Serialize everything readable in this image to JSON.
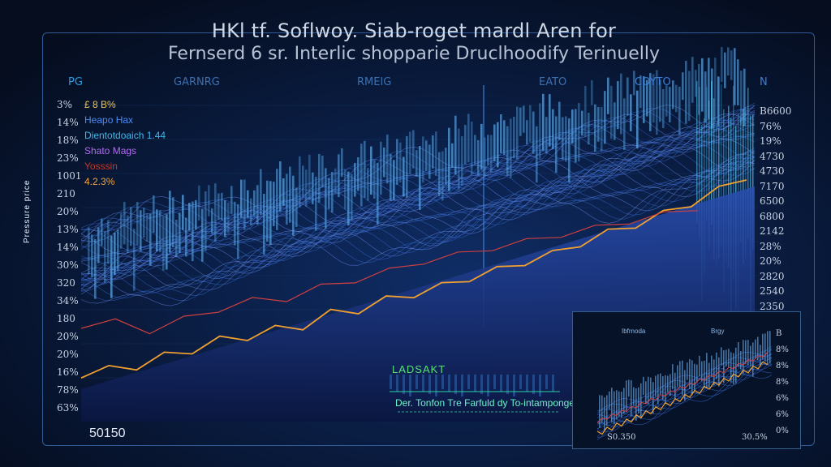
{
  "title": "HKl tf. Soflwoy. Siab-roget mardl Aren for",
  "subtitle": "Fernserd 6 sr. Interlic shopparie Druclhoodify Terinuelly",
  "column_headers": [
    {
      "text": "PG",
      "color": "#2b9be0"
    },
    {
      "text": "GARNRG",
      "color": "#3d6fb0"
    },
    {
      "text": "RMEIG",
      "color": "#3d6fb0"
    },
    {
      "text": "EATO",
      "color": "#3d6fb0"
    },
    {
      "text": "COYTO",
      "color": "#3a7ed6"
    },
    {
      "text": "N",
      "color": "#3a7ed6"
    }
  ],
  "y_ticks_left": [
    "3%",
    "14%",
    "18%",
    "23%",
    "1001",
    "210",
    "20%",
    "13%",
    "14%",
    "30%",
    "320",
    "34%",
    "180",
    "20%",
    "20%",
    "16%",
    "78%",
    "63%"
  ],
  "y_ticks_right": [
    "B6600",
    "76%",
    "19%",
    "4730",
    "4730",
    "7170",
    "6500",
    "6800",
    "2142",
    "28%",
    "20%",
    "2820",
    "2540",
    "2350"
  ],
  "y_axis_label": "Pressure price",
  "legend": [
    {
      "text": "£ 8 B%",
      "color": "#f0c64a"
    },
    {
      "text": "Heapo Hax",
      "color": "#4a8cf5"
    },
    {
      "text": "Dientotdoaich 1.44",
      "color": "#3fb6e8"
    },
    {
      "text": "Shato Mags",
      "color": "#b26cf0"
    },
    {
      "text": "Yosssin",
      "color": "#c0392b"
    },
    {
      "text": "4.2.3%",
      "color": "#f2a53a"
    }
  ],
  "annotations": {
    "leadsakt": "LADSAKT",
    "note": "Der. Tonfon Tre Farfuld dy To-intamponge",
    "bottom_left": "50150"
  },
  "inset": {
    "labels": [
      "Ibfrnoda",
      "Brgy"
    ],
    "right_ticks": [
      "B",
      "8%",
      "8%",
      "8%",
      "6%",
      "6%",
      "0%"
    ],
    "bottom_left": "S0.350",
    "bottom_right": "30.5%"
  },
  "colors": {
    "background": "#050d1f",
    "wave": "#3a6fd8",
    "bars": "#5aa6e6",
    "orange_line": "#f0a030",
    "red_line": "#d04040",
    "frame": "#2f5c97"
  },
  "chart_data": {
    "type": "line",
    "title": "HKl tf. Soflwoy. Siab-roget mardl Aren for",
    "subtitle": "Fernserd 6 sr. Interlic shopparie Druclhoodify Terinuelly",
    "grid": true,
    "series": [
      {
        "color": "#f0a030",
        "values": [
          0.06,
          0.07,
          0.09,
          0.12,
          0.15,
          0.18,
          0.2,
          0.22,
          0.24,
          0.28,
          0.3,
          0.33,
          0.36,
          0.38,
          0.42,
          0.44,
          0.48,
          0.5,
          0.55,
          0.58,
          0.62,
          0.65,
          0.7,
          0.74,
          0.8
        ]
      },
      {
        "color": "#d04040",
        "values": [
          0.24,
          0.25,
          0.22,
          0.26,
          0.3,
          0.33,
          0.34,
          0.38,
          0.41,
          0.44,
          0.48,
          0.5,
          0.53,
          0.55,
          0.58,
          0.6,
          0.63,
          0.65,
          0.68
        ]
      }
    ]
  }
}
